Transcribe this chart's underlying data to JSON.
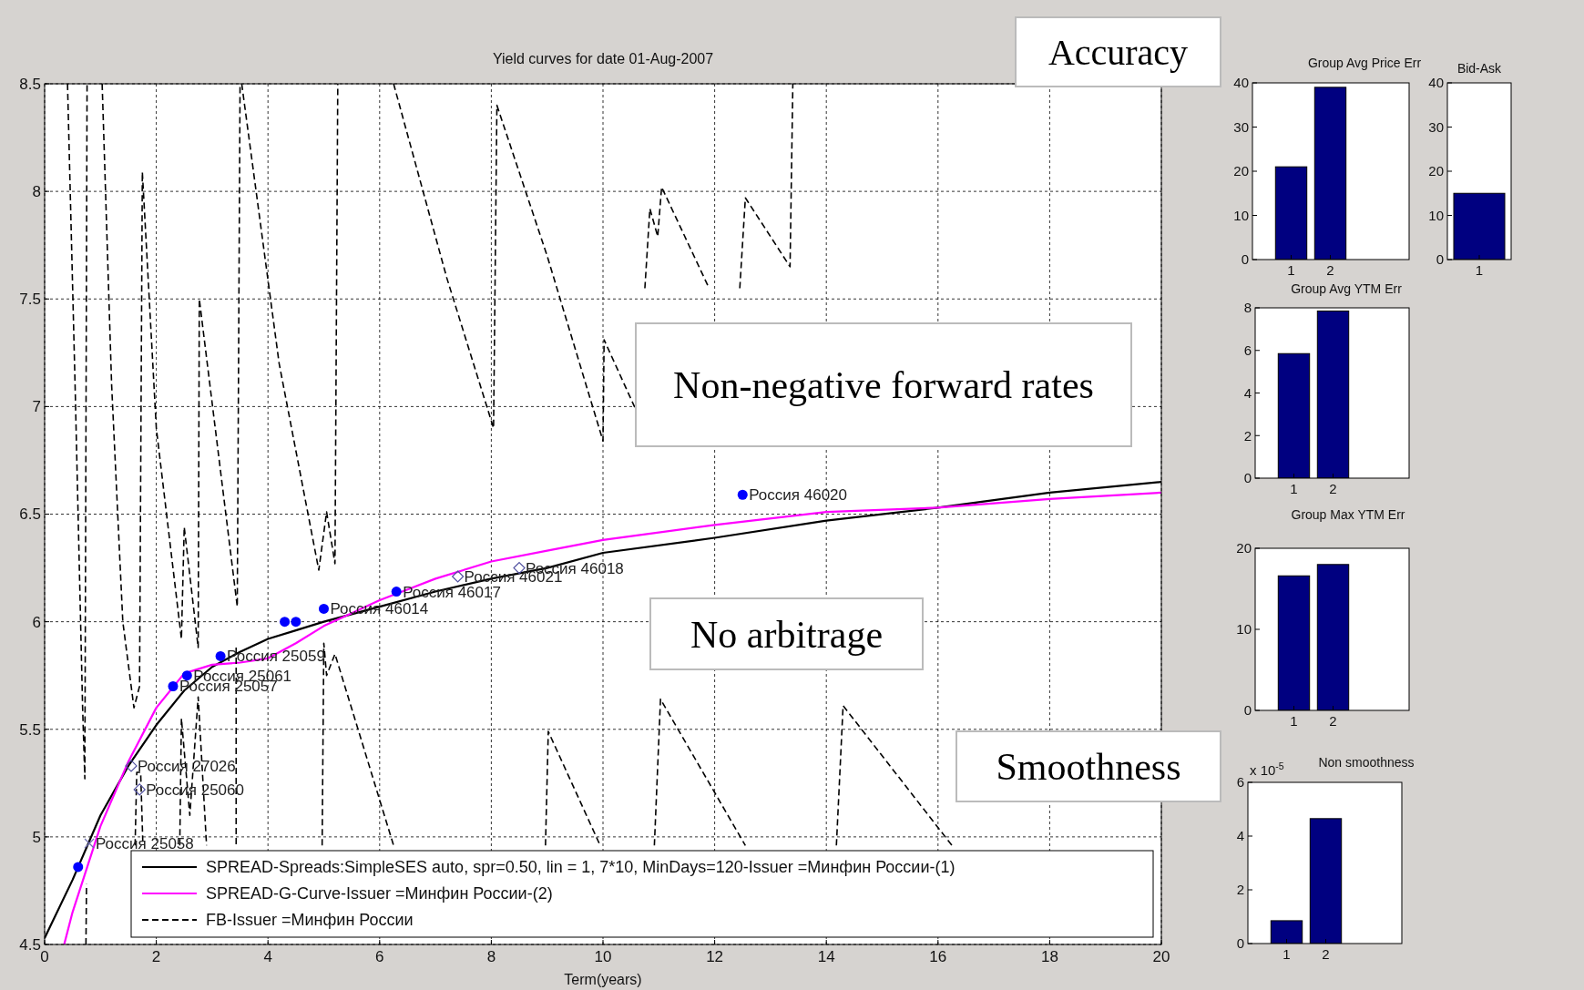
{
  "chart_data": [
    {
      "type": "line",
      "title": "Yield curves for date 01-Aug-2007",
      "xlabel": "Term(years)",
      "xlim": [
        0,
        20
      ],
      "ylim": [
        4.5,
        8.5
      ],
      "xticks": [
        0,
        2,
        4,
        6,
        8,
        10,
        12,
        14,
        16,
        18,
        20
      ],
      "yticks": [
        4.5,
        5,
        5.5,
        6,
        6.5,
        7,
        7.5,
        8,
        8.5
      ],
      "grid": true,
      "legend": "bottom",
      "annotations": [
        "Accuracy",
        "Non-negative forward rates",
        "No arbitrage",
        "Smoothness"
      ],
      "series": [
        {
          "name": "SPREAD-Spreads:SimpleSES auto, spr=0.50, lin = 1, 7*10, MinDays=120-Issuer =Минфин России-(1)",
          "type": "line",
          "line_style": "solid",
          "color": "#000000",
          "x": [
            0,
            0.5,
            1,
            1.5,
            2,
            2.5,
            3,
            3.5,
            4,
            4.5,
            5,
            6,
            7,
            8,
            9,
            10,
            12,
            14,
            16,
            18,
            20
          ],
          "values": [
            4.53,
            4.8,
            5.1,
            5.33,
            5.52,
            5.68,
            5.79,
            5.86,
            5.92,
            5.96,
            6.0,
            6.07,
            6.14,
            6.2,
            6.25,
            6.32,
            6.39,
            6.47,
            6.53,
            6.6,
            6.65
          ]
        },
        {
          "name": "SPREAD-G-Curve-Issuer =Минфин России-(2)",
          "type": "line",
          "line_style": "solid",
          "color": "#ff00ff",
          "x": [
            0.35,
            0.5,
            1,
            1.5,
            2,
            2.5,
            3,
            3.5,
            4,
            4.5,
            5,
            5.5,
            6,
            6.5,
            7,
            8,
            9,
            10,
            12,
            14,
            16,
            18,
            20
          ],
          "values": [
            4.5,
            4.65,
            5.05,
            5.35,
            5.6,
            5.76,
            5.8,
            5.81,
            5.83,
            5.9,
            5.98,
            6.04,
            6.1,
            6.15,
            6.2,
            6.28,
            6.33,
            6.38,
            6.45,
            6.51,
            6.53,
            6.57,
            6.6
          ]
        },
        {
          "name": "FB-Issuer =Минфин России",
          "type": "line",
          "line_style": "dashed",
          "color": "#000000",
          "x": [
            0.41,
            0.55,
            0.68,
            0.72,
            0.76,
            0.9,
            1.03,
            1.2,
            1.4,
            1.6,
            1.7,
            1.75,
            2.0,
            2.45,
            2.5,
            2.75,
            2.77,
            3.45,
            3.5,
            3.52,
            3.53,
            4.2,
            4.91,
            5.05,
            5.2,
            5.25,
            5.5,
            6.25,
            7.2,
            8.04,
            8.1,
            9.0,
            10.0,
            10.02,
            10.58,
            10.65,
            10.75,
            10.84,
            10.98,
            11.05,
            11.9,
            12.2,
            12.45,
            12.55,
            13.35,
            13.4,
            7.0,
            0.74,
            0.75,
            1.0,
            1.62,
            1.65,
            1.72,
            1.76,
            2.0,
            2.42,
            2.45,
            2.6,
            2.75,
            2.9,
            3.0,
            3.43,
            3.43,
            4.0,
            4.97,
            5.0,
            5.05,
            5.2,
            6.25,
            7.0,
            8.97,
            9.02,
            9.95,
            10.5,
            10.92,
            11.03,
            12.55,
            13.0,
            14.18,
            14.3,
            16.25
          ],
          "values": [
            8.5,
            7.05,
            5.6,
            5.27,
            8.5,
            null,
            8.5,
            7.1,
            6.0,
            5.6,
            5.7,
            8.09,
            6.9,
            5.92,
            6.44,
            5.88,
            7.5,
            6.07,
            8.5,
            null,
            8.5,
            7.2,
            6.24,
            6.51,
            6.27,
            8.5,
            null,
            8.5,
            7.6,
            6.9,
            8.4,
            7.7,
            6.84,
            7.31,
            6.99,
            null,
            7.55,
            7.92,
            7.79,
            8.02,
            7.55,
            null,
            7.55,
            7.97,
            7.65,
            8.5,
            null,
            4.5,
            4.78,
            null,
            4.96,
            5.3,
            5.3,
            4.96,
            null,
            4.96,
            5.55,
            5.1,
            5.65,
            4.96,
            null,
            5.88,
            4.96,
            null,
            4.96,
            5.9,
            5.75,
            5.85,
            4.96,
            null,
            4.96,
            5.49,
            4.96,
            null,
            4.96,
            5.64,
            4.96,
            null,
            4.96,
            5.61,
            4.96
          ]
        },
        {
          "type": "scatter",
          "marker": "circle",
          "color": "#0000ff",
          "x": [
            0.6,
            2.3,
            2.55,
            3.15,
            4.3,
            4.5,
            5.0,
            6.3,
            12.5
          ],
          "values": [
            4.86,
            5.7,
            5.75,
            5.84,
            6.0,
            6.0,
            6.06,
            6.14,
            6.59
          ],
          "value_labels": [
            null,
            "Россия 25057",
            "Россия 25061",
            "Россия 25059",
            null,
            null,
            "Россия 46014",
            "Россия 46017",
            "Россия 46020"
          ]
        },
        {
          "type": "scatter",
          "marker": "diamond",
          "color": "#5050a0",
          "x": [
            1.55,
            1.7,
            7.4,
            8.5
          ],
          "values": [
            5.33,
            5.22,
            6.21,
            6.25
          ],
          "value_labels": [
            "Россия 27026",
            "Россия 25060",
            "Россия 46021",
            "Россия 46018"
          ]
        },
        {
          "type": "scatter",
          "marker": "cross",
          "color": "#7070b0",
          "x": [
            0.8
          ],
          "values": [
            4.97
          ],
          "value_labels": [
            "Россия 25058"
          ]
        }
      ]
    },
    {
      "type": "bar",
      "title": "Group Avg Price Err",
      "categories": [
        "1",
        "2"
      ],
      "values": [
        21,
        39
      ],
      "color": "#000080",
      "ylim": [
        0,
        40
      ],
      "yticks": [
        0,
        10,
        20,
        30,
        40
      ]
    },
    {
      "type": "bar",
      "title": "Bid-Ask",
      "categories": [
        "1"
      ],
      "values": [
        15
      ],
      "color": "#000080",
      "ylim": [
        0,
        40
      ],
      "yticks": [
        0,
        10,
        20,
        30,
        40
      ]
    },
    {
      "type": "bar",
      "title": "Group Avg YTM Err",
      "categories": [
        "1",
        "2"
      ],
      "values": [
        5.85,
        7.85
      ],
      "color": "#000080",
      "ylim": [
        0,
        8
      ],
      "yticks": [
        0,
        2,
        4,
        6,
        8
      ]
    },
    {
      "type": "bar",
      "title": "Group Max YTM Err",
      "categories": [
        "1",
        "2"
      ],
      "values": [
        16.6,
        18
      ],
      "color": "#000080",
      "ylim": [
        0,
        20
      ],
      "yticks": [
        0,
        10,
        20
      ]
    },
    {
      "type": "bar",
      "title": "Non smoothness",
      "annotations": [
        "x 10$^{-5}$"
      ],
      "categories": [
        "1",
        "2"
      ],
      "values": [
        0.85,
        4.65
      ],
      "color": "#000080",
      "ylim": [
        0,
        6
      ],
      "yticks": [
        0,
        2,
        4,
        6
      ]
    }
  ]
}
